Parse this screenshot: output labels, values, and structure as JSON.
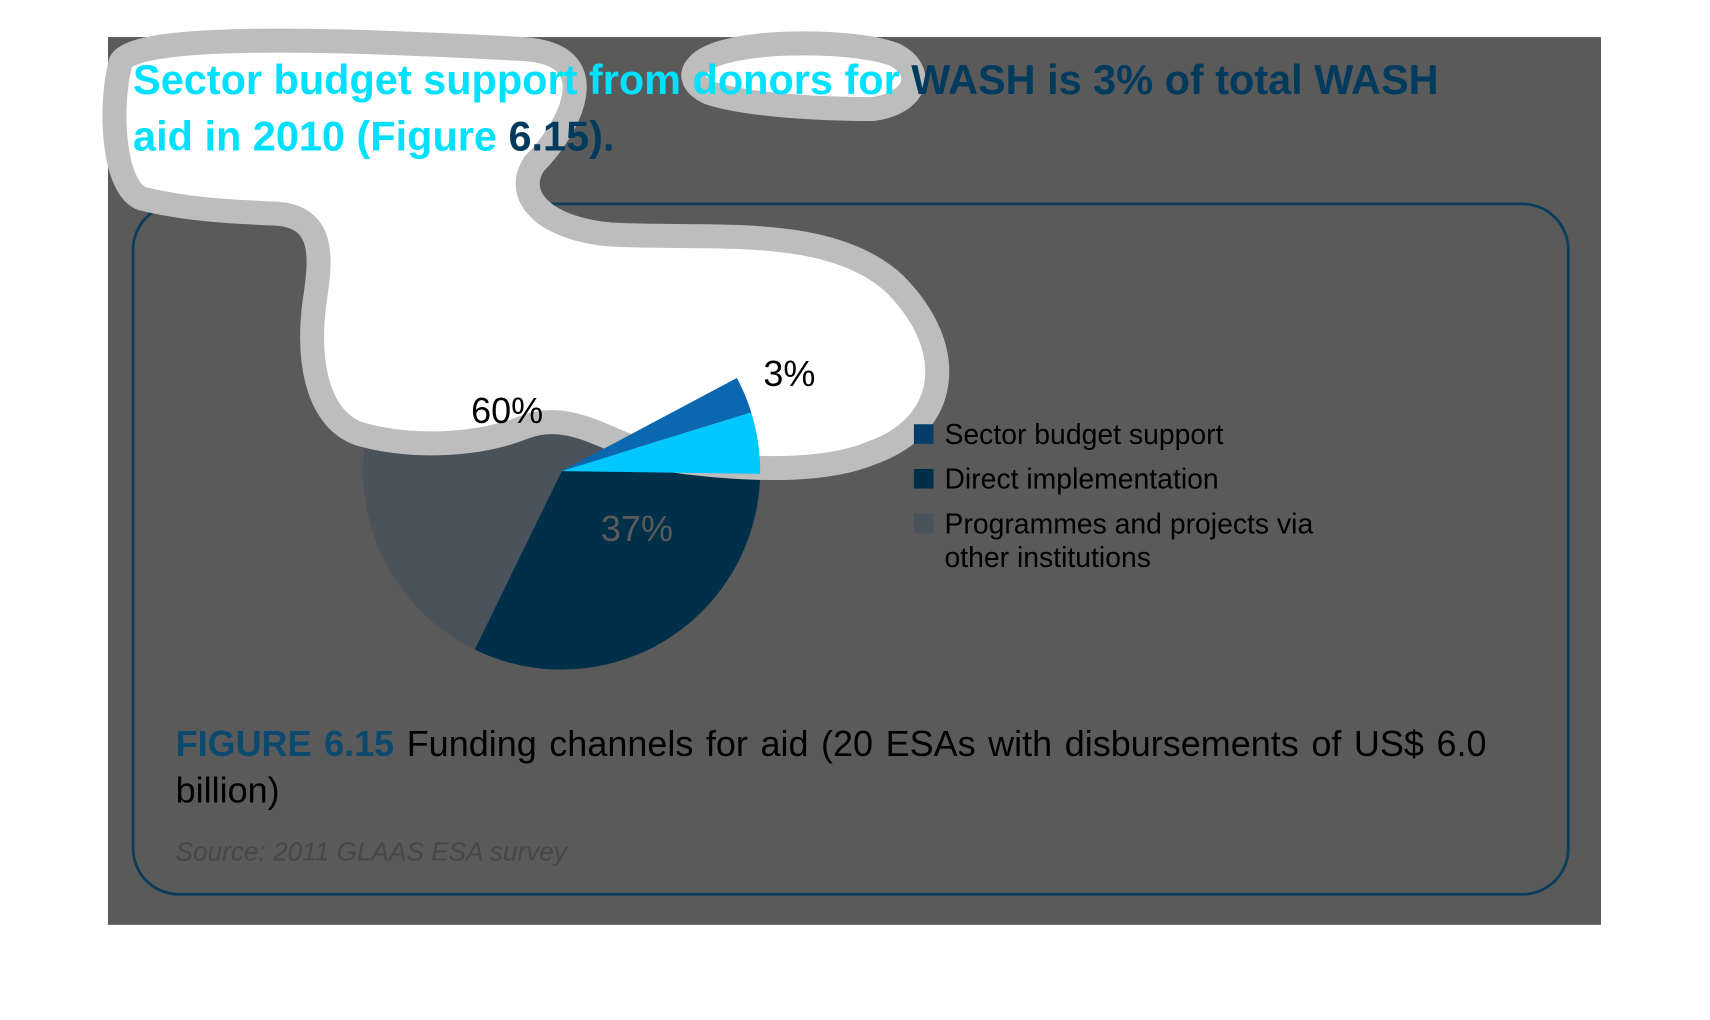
{
  "heading": {
    "line1_highlight": "Sector budget support from donors for",
    "line1_rest": " WASH is 3% of total WASH",
    "line2_highlight": "aid in 2010 (Figure",
    "line2_rest": " 6.15)."
  },
  "caption": {
    "figure_label": "FIGURE 6.15",
    "text": " Funding channels for aid (20 ESAs with disbursements of US$ 6.0 billion)"
  },
  "source": "Source: 2011 GLAAS ESA survey",
  "colors": {
    "sector_budget_support": "#0a68b0",
    "direct_implementation": "#003049",
    "programmes": "#4a535b",
    "highlight": "#00c8ff"
  },
  "chart_data": {
    "type": "pie",
    "title": "Funding channels for aid (20 ESAs with disbursements of US$ 6.0 billion)",
    "legend_position": "right",
    "slices": [
      {
        "label": "Sector budget support",
        "value": 3,
        "data_label": "3%"
      },
      {
        "label": "Direct implementation",
        "value": 37,
        "data_label": "37%"
      },
      {
        "label": "Programmes and projects via other institutions",
        "value": 60,
        "data_label": "60%"
      }
    ],
    "legend": [
      "Sector budget support",
      "Direct implementation",
      "Programmes and projects via",
      "other institutions"
    ]
  }
}
